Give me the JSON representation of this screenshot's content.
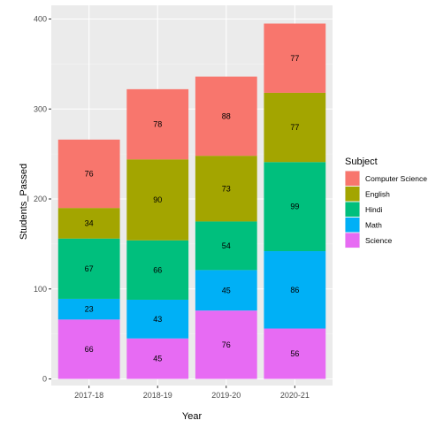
{
  "chart_data": {
    "type": "bar",
    "stacked": true,
    "xlabel": "Year",
    "ylabel": "Students_Passed",
    "ylim": [
      0,
      415
    ],
    "yticks": [
      0,
      100,
      200,
      300,
      400
    ],
    "categories": [
      "2017-18",
      "2018-19",
      "2019-20",
      "2020-21"
    ],
    "grid": true,
    "legend": {
      "title": "Subject",
      "placement": "right"
    },
    "series": [
      {
        "name": "Computer Science",
        "color": "#F8766D",
        "values": [
          76,
          78,
          88,
          77
        ]
      },
      {
        "name": "English",
        "color": "#A3A500",
        "values": [
          34,
          90,
          73,
          77
        ]
      },
      {
        "name": "Hindi",
        "color": "#00BF7D",
        "values": [
          67,
          66,
          54,
          99
        ]
      },
      {
        "name": "Math",
        "color": "#00B0F6",
        "values": [
          23,
          43,
          45,
          86
        ]
      },
      {
        "name": "Science",
        "color": "#E76BF3",
        "values": [
          66,
          45,
          76,
          56
        ]
      }
    ]
  }
}
